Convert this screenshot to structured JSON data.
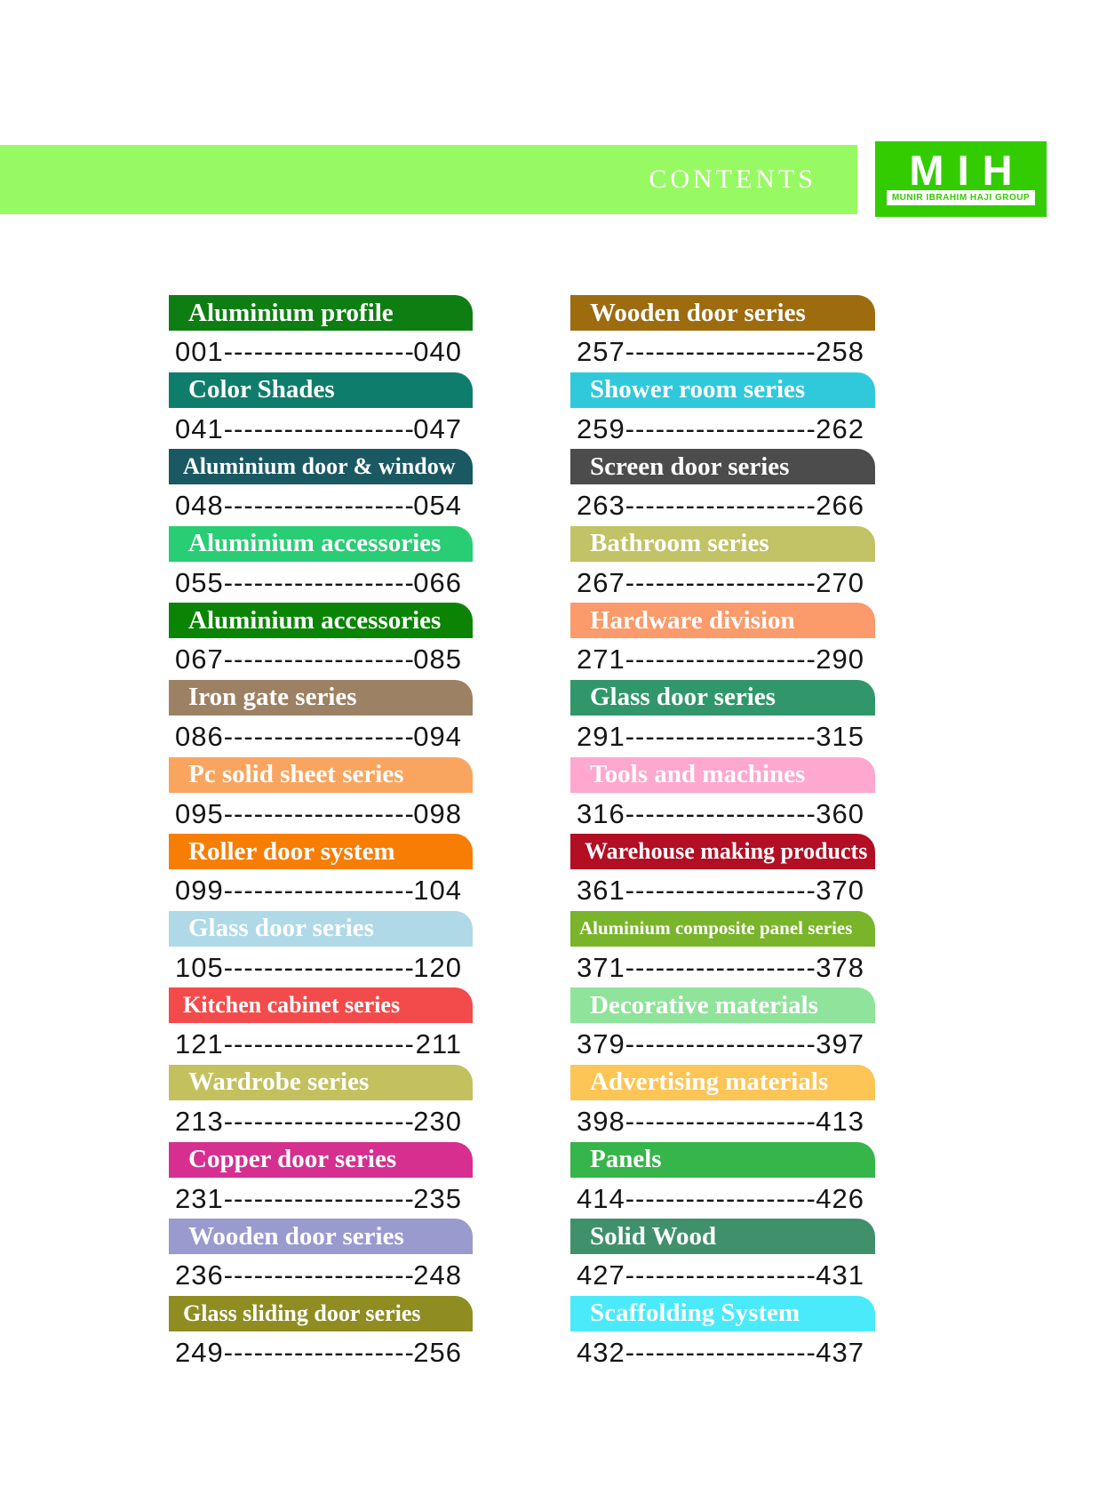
{
  "header": {
    "title": "CONTENTS",
    "band_color": "#98FA62",
    "logo": {
      "text": "MIH",
      "subtext": "MUNIR IBRAHIM HAJI GROUP",
      "bg_color": "#33CC00",
      "text_color": "#ffffff",
      "strip_bg": "#ffffff",
      "strip_text_color": "#33CC00"
    }
  },
  "leader": "--------------------",
  "columns": {
    "left": [
      {
        "label": "Aluminium profile",
        "color": "#0E7E12",
        "start": "001",
        "end": "040"
      },
      {
        "label": "Color Shades",
        "color": "#0F7D6B",
        "start": "041",
        "end": "047"
      },
      {
        "label": "Aluminium door & window",
        "color": "#1A5962",
        "start": "048",
        "end": "054"
      },
      {
        "label": "Aluminium accessories",
        "color": "#29CD74",
        "start": "055",
        "end": "066"
      },
      {
        "label": "Aluminium accessories",
        "color": "#0B8406",
        "start": "067",
        "end": "085"
      },
      {
        "label": "Iron gate series",
        "color": "#9D8164",
        "start": "086",
        "end": "094"
      },
      {
        "label": "Pc solid sheet series",
        "color": "#F9A55F",
        "start": "095",
        "end": "098"
      },
      {
        "label": "Roller door system",
        "color": "#F87D05",
        "start": "099",
        "end": "104"
      },
      {
        "label": "Glass door series",
        "color": "#AFD9E7",
        "start": "105",
        "end": "120"
      },
      {
        "label": "Kitchen cabinet series",
        "color": "#F34B4B",
        "start": "121",
        "end": "211"
      },
      {
        "label": "Wardrobe series",
        "color": "#C3C15E",
        "start": "213",
        "end": "230"
      },
      {
        "label": "Copper door series",
        "color": "#D62F90",
        "start": "231",
        "end": "235"
      },
      {
        "label": "Wooden door series",
        "color": "#999ACE",
        "start": "236",
        "end": "248"
      },
      {
        "label": "Glass sliding door series",
        "color": "#8F8D21",
        "start": "249",
        "end": "256"
      }
    ],
    "right": [
      {
        "label": "Wooden door series",
        "color": "#9C6C0F",
        "start": "257",
        "end": "258"
      },
      {
        "label": "Shower room series",
        "color": "#2FC9DB",
        "start": "259",
        "end": "262"
      },
      {
        "label": "Screen door series",
        "color": "#4C4C4C",
        "start": "263",
        "end": "266"
      },
      {
        "label": "Bathroom series",
        "color": "#C2C266",
        "start": "267",
        "end": "270"
      },
      {
        "label": "Hardware division",
        "color": "#FB9A6B",
        "start": "271",
        "end": "290"
      },
      {
        "label": "Glass door series",
        "color": "#31976A",
        "start": "291",
        "end": "315"
      },
      {
        "label": "Tools and machines",
        "color": "#FFA8CF",
        "start": "316",
        "end": "360"
      },
      {
        "label": "Warehouse making products",
        "color": "#B30E23",
        "start": "361",
        "end": "370"
      },
      {
        "label": "Aluminium composite panel series",
        "color": "#79B42B",
        "start": "371",
        "end": "378"
      },
      {
        "label": "Decorative materials",
        "color": "#90E39A",
        "start": "379",
        "end": "397"
      },
      {
        "label": "Advertising materials",
        "color": "#FCC556",
        "start": "398",
        "end": "413"
      },
      {
        "label": "Panels",
        "color": "#36B54A",
        "start": "414",
        "end": "426"
      },
      {
        "label": "Solid Wood",
        "color": "#41906C",
        "start": "427",
        "end": "431"
      },
      {
        "label": "Scaffolding System",
        "color": "#4AEAFB",
        "start": "432",
        "end": "437"
      }
    ]
  }
}
